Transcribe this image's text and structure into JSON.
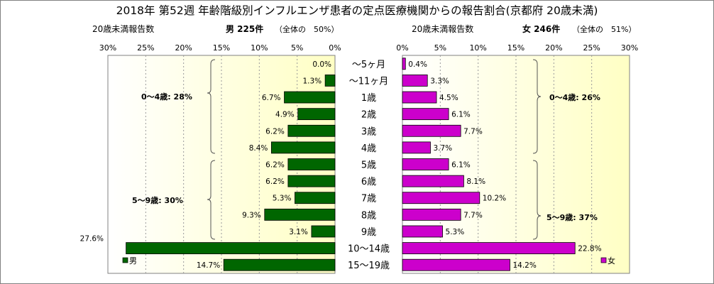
{
  "chart_data": {
    "type": "bar",
    "title": "2018年 第52週 年齢階級別インフルエンザ患者の定点医療機関からの報告割合(京都府 20歳未満)",
    "categories": [
      "～5ヶ月",
      "～11ヶ月",
      "1歳",
      "2歳",
      "3歳",
      "4歳",
      "5歳",
      "6歳",
      "7歳",
      "8歳",
      "9歳",
      "10～14歳",
      "15～19歳"
    ],
    "series": [
      {
        "name": "男",
        "color": "#006600",
        "values": [
          0.0,
          1.3,
          6.7,
          4.9,
          6.2,
          8.4,
          6.2,
          6.2,
          5.3,
          9.3,
          3.1,
          27.6,
          14.7
        ],
        "labels": [
          "0.0%",
          "1.3%",
          "6.7%",
          "4.9%",
          "6.2%",
          "8.4%",
          "6.2%",
          "6.2%",
          "5.3%",
          "9.3%",
          "3.1%",
          "27.6%",
          "14.7%"
        ]
      },
      {
        "name": "女",
        "color": "#cc00cc",
        "values": [
          0.4,
          3.3,
          4.5,
          6.1,
          7.7,
          3.7,
          6.1,
          8.1,
          10.2,
          7.7,
          5.3,
          22.8,
          14.2
        ],
        "labels": [
          "0.4%",
          "3.3%",
          "4.5%",
          "6.1%",
          "7.7%",
          "3.7%",
          "6.1%",
          "8.1%",
          "10.2%",
          "7.7%",
          "5.3%",
          "22.8%",
          "14.2%"
        ]
      }
    ],
    "left_panel": {
      "axis_caption": "20歳未満報告数",
      "summary_label": "男 225件",
      "summary_share": "（全体の　50%）",
      "ticks": [
        "30%",
        "25%",
        "20%",
        "15%",
        "10%",
        "5%",
        "0%"
      ],
      "xlim": [
        0,
        30
      ]
    },
    "right_panel": {
      "axis_caption": "20歳未満報告数",
      "summary_label": "女 246件",
      "summary_share": "（全体の　51%）",
      "ticks": [
        "0%",
        "5%",
        "10%",
        "15%",
        "20%",
        "25%",
        "30%"
      ],
      "xlim": [
        0,
        30
      ]
    },
    "brackets": {
      "male": [
        "0～4歳: 28%",
        "5～9歳: 30%"
      ],
      "female": [
        "0～4歳: 26%",
        "5～9歳: 37%"
      ]
    },
    "legend": {
      "male": "男",
      "female": "女"
    },
    "grid": true,
    "background_gradient": [
      "#ffffff",
      "#ffffc4"
    ]
  }
}
